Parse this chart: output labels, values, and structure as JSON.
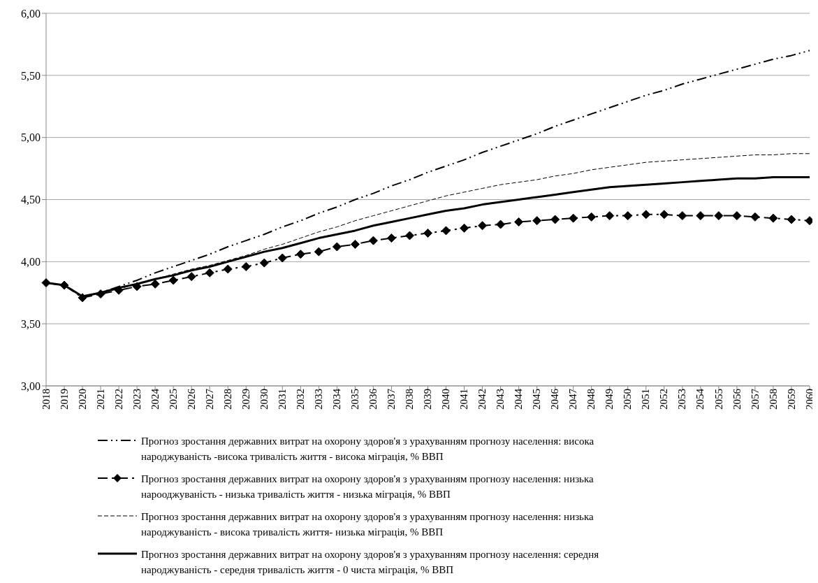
{
  "chart_data": {
    "type": "line",
    "categories": [
      "2018",
      "2019",
      "2020",
      "2021",
      "2022",
      "2023",
      "2024",
      "2025",
      "2026",
      "2027",
      "2028",
      "2029",
      "2030",
      "2031",
      "2032",
      "2033",
      "2034",
      "2035",
      "2036",
      "2037",
      "2038",
      "2039",
      "2040",
      "2041",
      "2042",
      "2043",
      "2044",
      "2045",
      "2046",
      "2047",
      "2048",
      "2049",
      "2050",
      "2051",
      "2052",
      "2053",
      "2054",
      "2055",
      "2056",
      "2057",
      "2058",
      "2059",
      "2060"
    ],
    "series": [
      {
        "name": "Прогноз зростання  державних витрат на охорону здоров'я з урахуванням прогнозу населення: висока народжуваність -висока тривалість життя - висока міграція, % ВВП",
        "color": "#000000",
        "line_style": "dashdotdot",
        "marker": "none",
        "values": [
          3.83,
          3.81,
          3.72,
          3.75,
          3.8,
          3.85,
          3.91,
          3.96,
          4.01,
          4.06,
          4.12,
          4.17,
          4.22,
          4.28,
          4.33,
          4.39,
          4.44,
          4.5,
          4.55,
          4.61,
          4.66,
          4.72,
          4.77,
          4.82,
          4.88,
          4.93,
          4.98,
          5.03,
          5.09,
          5.14,
          5.19,
          5.24,
          5.29,
          5.34,
          5.38,
          5.43,
          5.47,
          5.51,
          5.55,
          5.59,
          5.63,
          5.66,
          5.7
        ]
      },
      {
        "name": "Прогноз зростання  державних витрат на охорону здоров'я з урахуванням прогнозу населення: низька нарооджуваність - низька тривалість життя - низька міграція, % ВВП",
        "color": "#000000",
        "line_style": "dashdot",
        "marker": "diamond",
        "values": [
          3.83,
          3.81,
          3.71,
          3.74,
          3.77,
          3.8,
          3.82,
          3.85,
          3.88,
          3.91,
          3.94,
          3.96,
          3.99,
          4.03,
          4.06,
          4.08,
          4.12,
          4.14,
          4.17,
          4.19,
          4.21,
          4.23,
          4.25,
          4.27,
          4.29,
          4.3,
          4.32,
          4.33,
          4.34,
          4.35,
          4.36,
          4.37,
          4.37,
          4.38,
          4.38,
          4.37,
          4.37,
          4.37,
          4.37,
          4.36,
          4.35,
          4.34,
          4.33
        ]
      },
      {
        "name": "Прогноз зростання  державних витрат на охорону здоров'я з урахуванням прогнозу населення: низька народжуваність - висока тривалість життя- низька міграція, % ВВП",
        "color": "#000000",
        "line_style": "dashed",
        "marker": "none",
        "values": [
          3.83,
          3.81,
          3.72,
          3.75,
          3.78,
          3.82,
          3.86,
          3.9,
          3.94,
          3.97,
          4.01,
          4.05,
          4.1,
          4.14,
          4.19,
          4.24,
          4.28,
          4.33,
          4.37,
          4.41,
          4.45,
          4.49,
          4.53,
          4.56,
          4.59,
          4.62,
          4.64,
          4.66,
          4.69,
          4.71,
          4.74,
          4.76,
          4.78,
          4.8,
          4.81,
          4.82,
          4.83,
          4.84,
          4.85,
          4.86,
          4.86,
          4.87,
          4.87
        ]
      },
      {
        "name": "Прогноз зростання  державних витрат на охорону здоров'я з урахуванням прогнозу населення: середня народжуваність - середня тривалість життя - 0 чиста міграція, % ВВП",
        "color": "#000000",
        "line_style": "solid",
        "marker": "none",
        "values": [
          3.83,
          3.81,
          3.72,
          3.75,
          3.79,
          3.82,
          3.86,
          3.89,
          3.93,
          3.96,
          4.0,
          4.04,
          4.08,
          4.11,
          4.15,
          4.19,
          4.22,
          4.25,
          4.29,
          4.32,
          4.35,
          4.38,
          4.41,
          4.43,
          4.46,
          4.48,
          4.5,
          4.52,
          4.54,
          4.56,
          4.58,
          4.6,
          4.61,
          4.62,
          4.63,
          4.64,
          4.65,
          4.66,
          4.67,
          4.67,
          4.68,
          4.68,
          4.68
        ]
      }
    ],
    "ylim": [
      3,
      6
    ],
    "yticks": [
      {
        "value": 3,
        "label": "3,00"
      },
      {
        "value": 3.5,
        "label": "3,50"
      },
      {
        "value": 4,
        "label": "4,00"
      },
      {
        "value": 4.5,
        "label": "4,50"
      },
      {
        "value": 5,
        "label": "5,00"
      },
      {
        "value": 5.5,
        "label": "5,50"
      },
      {
        "value": 6,
        "label": "6,00"
      }
    ],
    "grid": "y",
    "legend": "bottom"
  }
}
